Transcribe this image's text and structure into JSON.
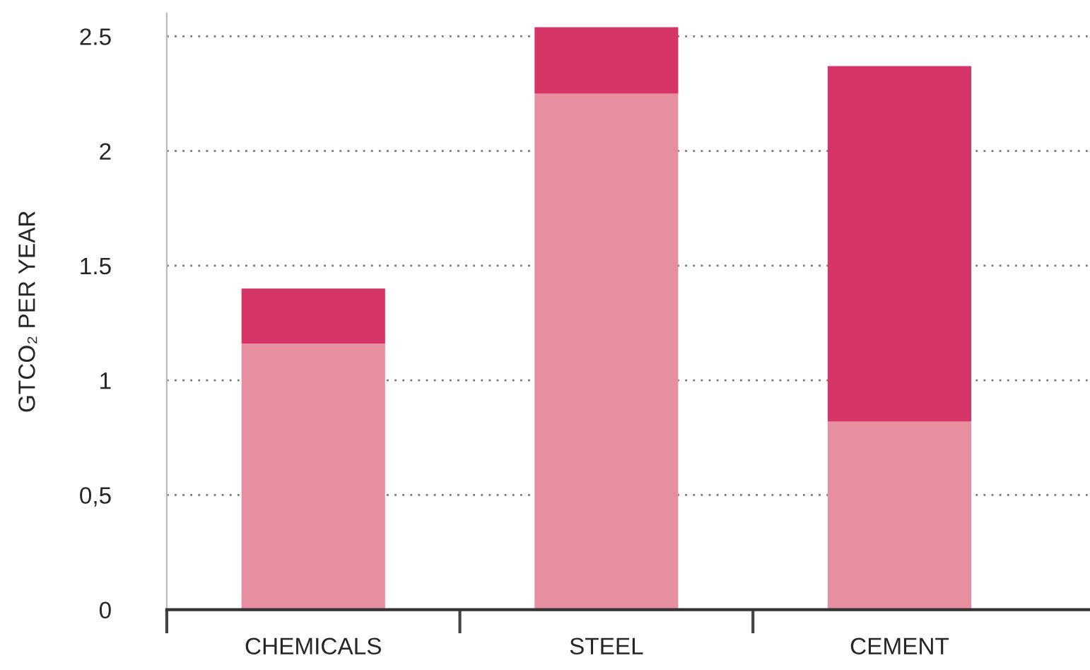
{
  "chart_data": {
    "type": "bar",
    "stacked": true,
    "ylabel": "GTCO₂ PER YEAR",
    "categories": [
      "CHEMICALS",
      "STEEL",
      "CEMENT"
    ],
    "series": [
      {
        "color": "#e78fa0",
        "values": [
          1.16,
          2.25,
          0.82
        ]
      },
      {
        "color": "#d63567",
        "values": [
          0.24,
          0.29,
          1.55
        ]
      }
    ],
    "ylim": [
      0,
      2.6
    ],
    "yticks": [
      0,
      {
        "value": 0.5,
        "label": "0,5"
      },
      1,
      1.5,
      2,
      2.5
    ],
    "grid": "y",
    "legend": false
  }
}
